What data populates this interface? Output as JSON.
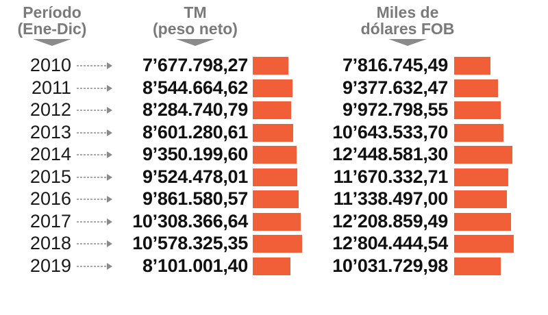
{
  "headers": {
    "period_line1": "Período",
    "period_line2": "(Ene-Dic)",
    "tm_line1": "TM",
    "tm_line2": "(peso neto)",
    "fob_line1": "Miles de",
    "fob_line2": "dólares FOB"
  },
  "colors": {
    "bar": "#f05f38",
    "header": "#7a7a7a",
    "arrow": "#8a8a8a"
  },
  "chart_data": {
    "type": "bar",
    "categories": [
      "2010",
      "2011",
      "2012",
      "2013",
      "2014",
      "2015",
      "2016",
      "2017",
      "2018",
      "2019"
    ],
    "series": [
      {
        "name": "TM (peso neto)",
        "values": [
          7677798.27,
          8544664.62,
          8284740.79,
          8601280.61,
          9350199.6,
          9524478.01,
          9861580.57,
          10308366.64,
          10578325.35,
          8101001.4
        ],
        "labels": [
          "7’677.798,27",
          "8’544.664,62",
          "8’284.740,79",
          "8’601.280,61",
          "9’350.199,60",
          "9’524.478,01",
          "9’861.580,57",
          "10’308.366,64",
          "10’578.325,35",
          "8’101.001,40"
        ]
      },
      {
        "name": "Miles de dólares FOB",
        "values": [
          7816745.49,
          9377632.47,
          9972798.55,
          10643533.7,
          12448581.3,
          11670332.71,
          11338497.0,
          12208859.49,
          12804444.54,
          10031729.98
        ],
        "labels": [
          "7’816.745,49",
          "9’377.632,47",
          "9’972.798,55",
          "10’643.533,70",
          "12’448.581,30",
          "11’670.332,71",
          "11’338.497,00",
          "12’208.859,49",
          "12’804.444,54",
          "10’031.729,98"
        ]
      }
    ]
  }
}
